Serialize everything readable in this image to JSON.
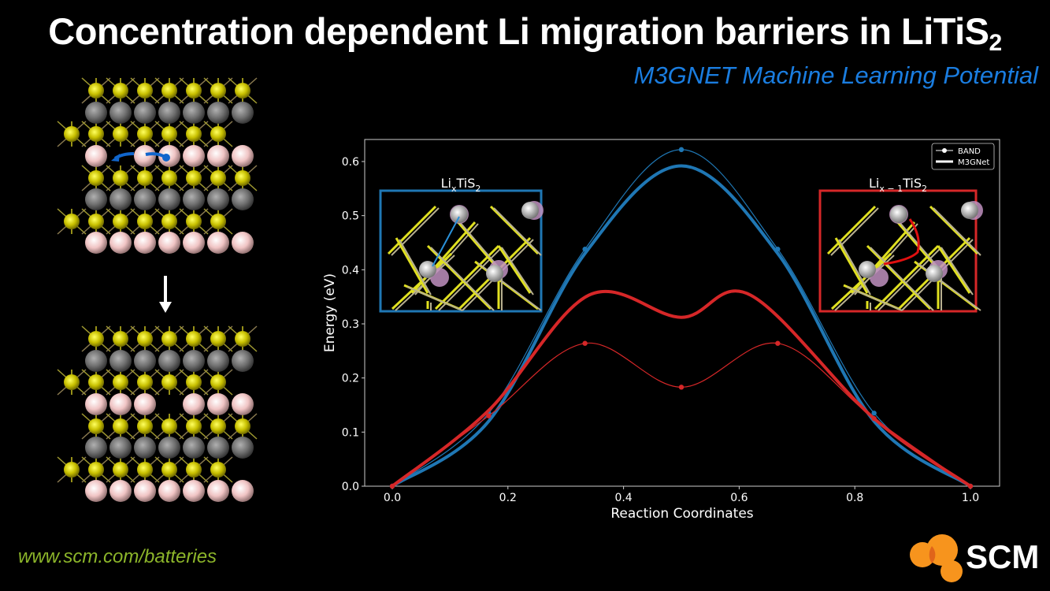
{
  "header": {
    "title_main": "Concentration dependent Li migration barriers in LiTiS",
    "title_sub": "2",
    "subtitle": "M3GNET Machine Learning Potential"
  },
  "footer": {
    "url": "www.scm.com/batteries",
    "logo_text": "SCM",
    "logo_color": "#f7941d"
  },
  "colors": {
    "li_x": "#1f77b4",
    "li_x_minus_1": "#d62728",
    "subtitle": "#1a7de0",
    "sulfur": "#e8e000",
    "titanium": "#808080",
    "lithium": "#f4c8c8"
  },
  "chart_data": {
    "type": "line",
    "xlabel": "Reaction Coordinates",
    "ylabel": "Energy (eV)",
    "xlim": [
      -0.04,
      1.05
    ],
    "ylim": [
      0.0,
      0.64
    ],
    "xticks": [
      "0.0",
      "0.2",
      "0.4",
      "0.6",
      "0.8",
      "1.0"
    ],
    "yticks": [
      "0.0",
      "0.1",
      "0.2",
      "0.3",
      "0.4",
      "0.5",
      "0.6"
    ],
    "grid": false,
    "legend": {
      "position": "top-right",
      "entries": [
        "BAND",
        "M3GNet"
      ]
    },
    "series": [
      {
        "system": "LixTiS2",
        "method": "BAND",
        "color": "#1f77b4",
        "x": [
          0,
          0.1667,
          0.3333,
          0.5,
          0.6667,
          0.8333,
          1.0
        ],
        "y": [
          0,
          0.135,
          0.438,
          0.622,
          0.438,
          0.135,
          0
        ]
      },
      {
        "system": "LixTiS2",
        "method": "M3GNet",
        "color": "#1f77b4",
        "x": [
          0,
          0.1667,
          0.3333,
          0.5,
          0.6667,
          0.8333,
          1.0
        ],
        "y": [
          0,
          0.12,
          0.43,
          0.592,
          0.43,
          0.12,
          0
        ]
      },
      {
        "system": "Lix-1TiS2",
        "method": "BAND",
        "color": "#d62728",
        "x": [
          0,
          0.1667,
          0.3333,
          0.5,
          0.6667,
          0.8333,
          1.0
        ],
        "y": [
          0,
          0.13,
          0.264,
          0.183,
          0.264,
          0.125,
          0
        ]
      },
      {
        "system": "Lix-1TiS2",
        "method": "M3GNet",
        "color": "#d62728",
        "x": [
          0,
          0.1667,
          0.34,
          0.5,
          0.62,
          0.8333,
          1.0
        ],
        "y": [
          0,
          0.14,
          0.353,
          0.312,
          0.353,
          0.125,
          0
        ]
      }
    ],
    "insets": [
      {
        "label_main": "Li",
        "label_sub": "x",
        "label_rest": "TiS",
        "label_sub2": "2",
        "border": "#1f77b4"
      },
      {
        "label_main": "Li",
        "label_sub": "x − 1",
        "label_rest": "TiS",
        "label_sub2": "2",
        "border": "#d62728"
      }
    ]
  }
}
